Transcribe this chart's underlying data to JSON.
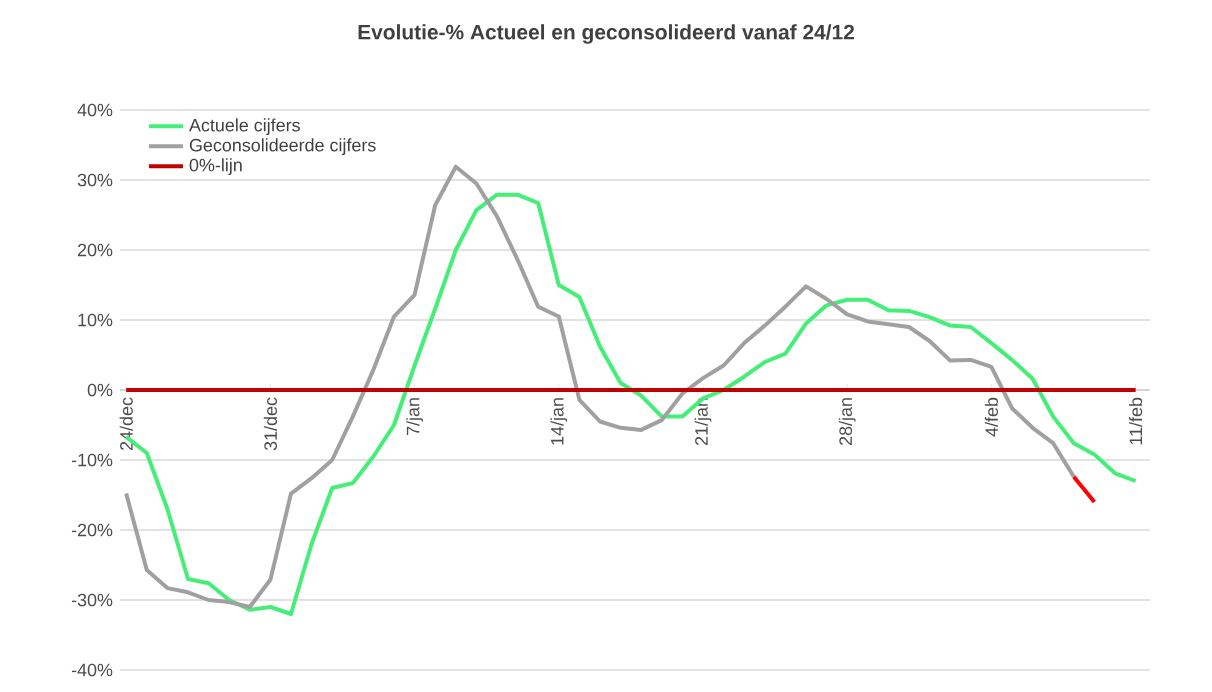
{
  "chart_data": {
    "type": "line",
    "title": "Evolutie-% Actueel en geconsolideerd vanaf 24/12",
    "categories": [
      "24/dec",
      null,
      null,
      null,
      null,
      null,
      null,
      "31/dec",
      null,
      null,
      null,
      null,
      null,
      null,
      "7/jan",
      null,
      null,
      null,
      null,
      null,
      null,
      "14/jan",
      null,
      null,
      null,
      null,
      null,
      null,
      "21/jan",
      null,
      null,
      null,
      null,
      null,
      null,
      "28/jan",
      null,
      null,
      null,
      null,
      null,
      null,
      "4/feb",
      null,
      null,
      null,
      null,
      null,
      null,
      "11/feb"
    ],
    "series": [
      {
        "name": "Actuele cijfers",
        "color": "#44ee77",
        "values": [
          -6.7,
          -9,
          -17,
          -27,
          -27.6,
          -30,
          -31.4,
          -31,
          -32,
          -22,
          -14,
          -13.3,
          -9.5,
          -5,
          3.5,
          11.6,
          20,
          25.7,
          27.9,
          27.9,
          26.7,
          15,
          13.3,
          6.2,
          1,
          -0.8,
          -3.8,
          -3.8,
          -1.2,
          0,
          1.9,
          4,
          5.2,
          9.5,
          12.1,
          12.9,
          12.9,
          11.4,
          11.3,
          10.4,
          9.2,
          9,
          6.7,
          4.3,
          1.6,
          -3.8,
          -7.6,
          -9.2,
          -11.9,
          -13
        ]
      },
      {
        "name": "Geconsolideerde cijfers",
        "color": "#a0a0a0",
        "values": [
          -14.8,
          -25.7,
          -28.3,
          -28.9,
          -30,
          -30.3,
          -31,
          -27.1,
          -14.8,
          -12.6,
          -10,
          -3.8,
          2.9,
          10.5,
          13.6,
          26.4,
          31.9,
          29.5,
          24.8,
          18.6,
          11.9,
          10.5,
          -1.4,
          -4.5,
          -5.4,
          -5.7,
          -4.3,
          -0.5,
          1.7,
          3.5,
          6.7,
          9.2,
          11.9,
          14.8,
          13,
          10.8,
          9.8,
          9.4,
          9,
          7,
          4.2,
          4.3,
          3.3,
          -2.6,
          -5.4,
          -7.6,
          -12.4,
          null,
          null,
          null
        ]
      },
      {
        "name": "0%-lijn",
        "color": "#c00000",
        "values": [
          0,
          0,
          0,
          0,
          0,
          0,
          0,
          0,
          0,
          0,
          0,
          0,
          0,
          0,
          0,
          0,
          0,
          0,
          0,
          0,
          0,
          0,
          0,
          0,
          0,
          0,
          0,
          0,
          0,
          0,
          0,
          0,
          0,
          0,
          0,
          0,
          0,
          0,
          0,
          0,
          0,
          0,
          0,
          0,
          0,
          0,
          0,
          0,
          0,
          0
        ]
      },
      {
        "color": "#ff0000",
        "values": [
          null,
          null,
          null,
          null,
          null,
          null,
          null,
          null,
          null,
          null,
          null,
          null,
          null,
          null,
          null,
          null,
          null,
          null,
          null,
          null,
          null,
          null,
          null,
          null,
          null,
          null,
          null,
          null,
          null,
          null,
          null,
          null,
          null,
          null,
          null,
          null,
          null,
          null,
          null,
          null,
          null,
          null,
          null,
          null,
          null,
          null,
          -12.4,
          -16,
          null,
          null
        ]
      }
    ],
    "ylim": [
      -40,
      40
    ],
    "yticks": [
      {
        "value": -40,
        "label": "-40%"
      },
      {
        "value": -30,
        "label": "-30%"
      },
      {
        "value": -20,
        "label": "-20%"
      },
      {
        "value": -10,
        "label": "-10%"
      },
      {
        "value": 0,
        "label": "0%"
      },
      {
        "value": 10,
        "label": "10%"
      },
      {
        "value": 20,
        "label": "20%"
      },
      {
        "value": 30,
        "label": "30%"
      },
      {
        "value": 40,
        "label": "40%"
      }
    ],
    "grid": "y",
    "legend": "top left",
    "marker": "none",
    "line_style": "solid"
  }
}
